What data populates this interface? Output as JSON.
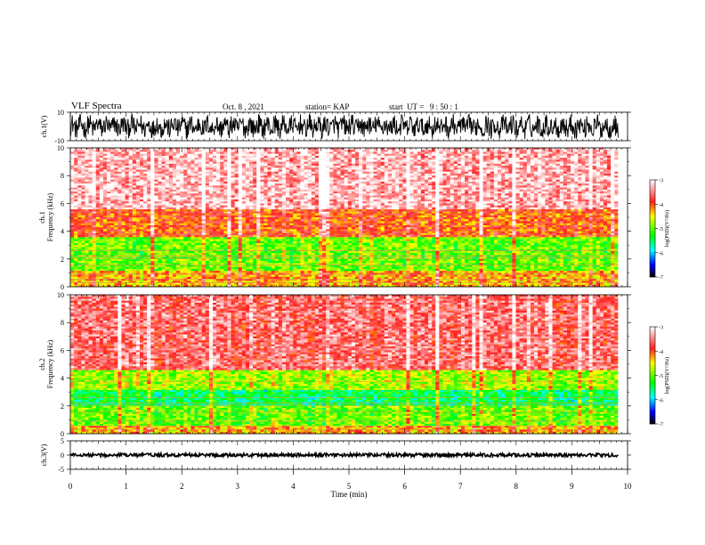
{
  "header": {
    "title": "VLF Spectra",
    "date": "Oct. 8 , 2021",
    "station": "station= KAP",
    "start": "start  UT =   9 : 50 : 1"
  },
  "chart_data": [
    {
      "type": "line",
      "name": "waveform-ch1",
      "ylabel": "ch.1(V)",
      "ylim": [
        -10,
        10
      ],
      "yticks": [
        "10",
        "-10"
      ],
      "xlim": [
        0,
        10
      ],
      "x_extent": 9.83,
      "trace_color": "#000000"
    },
    {
      "type": "heatmap",
      "name": "spectrogram-ch1",
      "ylabel_line1": "ch.1",
      "ylabel_line2": "Frequency  (kHz)",
      "ylim": [
        0,
        10
      ],
      "yticks": [
        "0",
        "2",
        "4",
        "6",
        "8",
        "10"
      ],
      "xlim": [
        0,
        10
      ],
      "x_extent": 9.83,
      "colorbar": {
        "label": "log(PSD)(V²/Hz)",
        "range": [
          -7,
          -3
        ],
        "ticks": [
          "-3",
          "-4",
          "-5",
          "-6",
          "-7"
        ],
        "colors": [
          "#ffffff",
          "#ff2020",
          "#ffff00",
          "#00ff00",
          "#00ffff",
          "#0000ff",
          "#000000"
        ]
      },
      "bands": [
        {
          "range_khz": [
            0,
            0.5
          ],
          "dominant": "mixed",
          "note": "interference lines"
        },
        {
          "range_khz": [
            0.5,
            1.2
          ],
          "dominant": "yellow-red"
        },
        {
          "range_khz": [
            1.2,
            3.5
          ],
          "dominant": "green-yellow",
          "level": -5.0
        },
        {
          "range_khz": [
            3.5,
            5.5
          ],
          "dominant": "yellow-red",
          "level": -4.0
        },
        {
          "range_khz": [
            5.5,
            10
          ],
          "dominant": "red-white",
          "level": -3.3
        }
      ]
    },
    {
      "type": "heatmap",
      "name": "spectrogram-ch2",
      "ylabel_line1": "ch.2",
      "ylabel_line2": "Frequency  (kHz)",
      "ylim": [
        0,
        10
      ],
      "yticks": [
        "0",
        "2",
        "4",
        "6",
        "8",
        "10"
      ],
      "xlim": [
        0,
        10
      ],
      "x_extent": 9.83,
      "colorbar": {
        "label": "log(PSD)(V²/Hz)",
        "range": [
          -7,
          -3
        ],
        "ticks": [
          "-3",
          "-4",
          "-5",
          "-6",
          "-7"
        ],
        "colors": [
          "#ffffff",
          "#ff2020",
          "#ffff00",
          "#00ff00",
          "#00ffff",
          "#0000ff",
          "#000000"
        ]
      },
      "bands": [
        {
          "range_khz": [
            0,
            0.6
          ],
          "dominant": "mixed"
        },
        {
          "range_khz": [
            0.6,
            2.0
          ],
          "dominant": "green-yellow",
          "level": -5.0
        },
        {
          "range_khz": [
            2.0,
            3.2
          ],
          "dominant": "cyan-green",
          "level": -5.5
        },
        {
          "range_khz": [
            3.2,
            4.5
          ],
          "dominant": "green-yellow",
          "level": -4.8
        },
        {
          "range_khz": [
            4.5,
            10
          ],
          "dominant": "red",
          "level": -3.6
        }
      ]
    },
    {
      "type": "line",
      "name": "waveform-ch3",
      "ylabel": "ch.3(V)",
      "ylim": [
        -5,
        5
      ],
      "yticks": [
        "5",
        "0",
        "-5"
      ],
      "xlim": [
        0,
        10
      ],
      "x_extent": 9.83,
      "trace_color": "#000000"
    }
  ],
  "xaxis": {
    "label": "Time  (min)",
    "ticks": [
      "0",
      "1",
      "2",
      "3",
      "4",
      "5",
      "6",
      "7",
      "8",
      "9",
      "10"
    ]
  }
}
